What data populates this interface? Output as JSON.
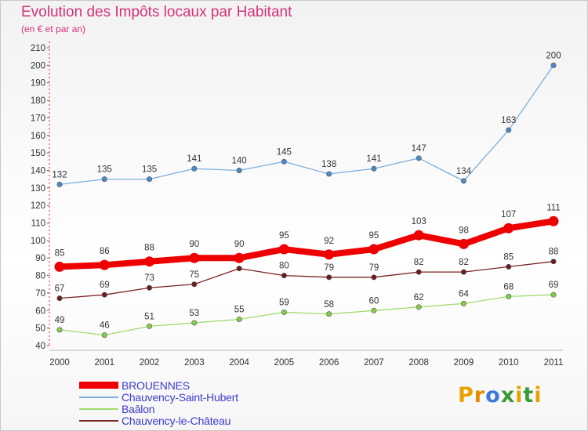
{
  "chart_data": {
    "type": "line",
    "title": "Evolution des Impôts locaux par Habitant",
    "subtitle": "(en € et par an)",
    "xlabel": "",
    "ylabel": "",
    "ylim": [
      40,
      210
    ],
    "yticks": [
      40,
      50,
      60,
      70,
      80,
      90,
      100,
      110,
      120,
      130,
      140,
      150,
      160,
      170,
      180,
      190,
      200,
      210
    ],
    "grid": false,
    "legend_position": "bottom-left",
    "categories": [
      "2000",
      "2001",
      "2002",
      "2003",
      "2004",
      "2005",
      "2006",
      "2007",
      "2008",
      "2009",
      "2010",
      "2011"
    ],
    "series": [
      {
        "name": "Chauvency-Saint-Hubert",
        "color": "#7cafdc",
        "marker_color": "#4a8bc6",
        "style": "thin",
        "values": [
          132,
          135,
          135,
          141,
          140,
          145,
          138,
          141,
          147,
          134,
          163,
          200
        ]
      },
      {
        "name": "Baâlon",
        "color": "#9fdc6e",
        "marker_color": "#86cc4a",
        "style": "thin",
        "values": [
          49,
          46,
          51,
          53,
          55,
          59,
          58,
          60,
          62,
          64,
          68,
          69
        ]
      },
      {
        "name": "Chauvency-le-Château",
        "color": "#7a2424",
        "marker_color": "#6b1c1c",
        "style": "thin",
        "values": [
          67,
          69,
          73,
          75,
          84,
          80,
          79,
          79,
          82,
          82,
          85,
          88
        ]
      },
      {
        "name": "BROUENNES",
        "color": "#ee0000",
        "marker_color": "#ee0000",
        "style": "thick",
        "values": [
          85,
          86,
          88,
          90,
          90,
          95,
          92,
          95,
          103,
          98,
          107,
          111
        ]
      }
    ],
    "legend_order": [
      "BROUENNES",
      "Chauvency-Saint-Hubert",
      "Baâlon",
      "Chauvency-le-Château"
    ]
  },
  "logo": {
    "letters": [
      "P",
      "r",
      "o",
      "x",
      "i",
      "t",
      "i"
    ],
    "colors": [
      "#e8a200",
      "#e88a00",
      "#3b78d8",
      "#3a9a3a",
      "#e8a200",
      "#3a9a3a",
      "#e8a200"
    ]
  }
}
